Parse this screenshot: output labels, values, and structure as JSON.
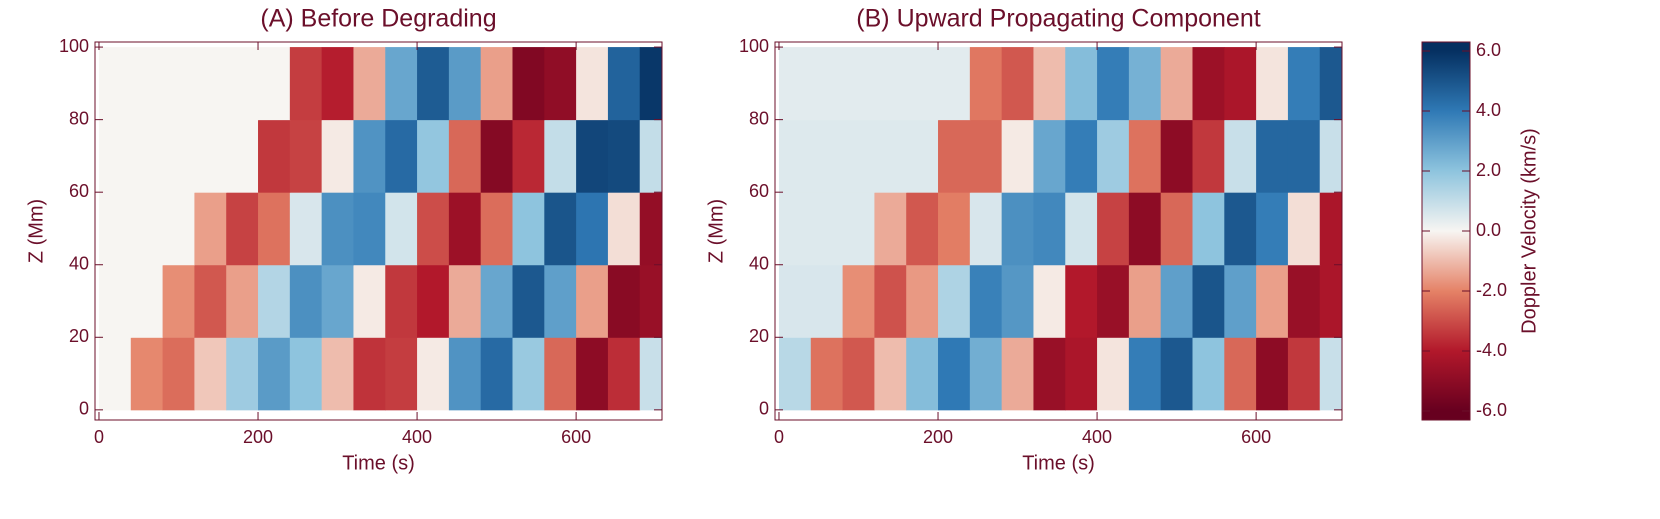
{
  "chart_data": [
    {
      "type": "heatmap",
      "title": "(A) Before Degrading",
      "x_label": "Time (s)",
      "y_label": "Z (Mm)",
      "x": [
        20,
        60,
        100,
        140,
        180,
        220,
        260,
        300,
        340,
        380,
        420,
        460,
        500,
        540,
        580,
        620,
        660,
        700
      ],
      "y": [
        10,
        30,
        50,
        70,
        90
      ],
      "values": [
        [
          0,
          -1.9,
          -2.4,
          -0.8,
          1.7,
          3.1,
          2.0,
          -1.0,
          -3.5,
          -3.3,
          -0.2,
          3.3,
          4.4,
          1.8,
          -2.5,
          -5.0,
          -3.6,
          0.9
        ],
        [
          0,
          0,
          -1.8,
          -2.8,
          -1.5,
          1.3,
          3.4,
          2.8,
          -0.2,
          -3.4,
          -4.0,
          -1.3,
          2.8,
          4.9,
          3.0,
          -1.5,
          -5.1,
          -4.7
        ],
        [
          0,
          0,
          0,
          -1.5,
          -3.2,
          -2.3,
          0.6,
          3.4,
          3.6,
          0.7,
          -3.0,
          -4.6,
          -2.4,
          2.0,
          5.0,
          4.1,
          -0.4,
          -4.8
        ],
        [
          0,
          0,
          0,
          0,
          0,
          -3.4,
          -3.2,
          -0.2,
          3.3,
          4.4,
          1.9,
          -2.5,
          -5.2,
          -3.7,
          1.0,
          5.4,
          5.3,
          1.0
        ],
        [
          0,
          0,
          0,
          0,
          0,
          0,
          -3.3,
          -3.9,
          -1.3,
          2.8,
          4.8,
          3.1,
          -1.5,
          -5.3,
          -4.9,
          -0.3,
          4.6,
          5.8
        ]
      ],
      "xlim": [
        -5,
        708
      ],
      "ylim": [
        -2.8,
        101.4
      ],
      "xticks": [
        0,
        200,
        400,
        600
      ],
      "yticks": [
        0,
        20,
        40,
        60,
        80,
        100
      ]
    },
    {
      "type": "heatmap",
      "title": "(B) Upward Propagating Component",
      "x_label": "Time (s)",
      "y_label": "Z (Mm)",
      "x": [
        20,
        60,
        100,
        140,
        180,
        220,
        260,
        300,
        340,
        380,
        420,
        460,
        500,
        540,
        580,
        620,
        660,
        700
      ],
      "y": [
        10,
        30,
        50,
        70,
        90
      ],
      "values": [
        [
          1.2,
          -2.3,
          -2.8,
          -1.0,
          2.2,
          4.0,
          2.6,
          -1.3,
          -4.7,
          -4.2,
          -0.3,
          3.9,
          4.9,
          2.0,
          -2.5,
          -5.0,
          -3.4,
          0.9
        ],
        [
          0.6,
          0.6,
          -1.8,
          -2.9,
          -1.6,
          1.4,
          3.8,
          3.2,
          -0.2,
          -4.0,
          -4.7,
          -1.5,
          3.0,
          5.0,
          3.0,
          -1.5,
          -4.7,
          -4.2
        ],
        [
          0.5,
          0.5,
          0.5,
          -1.3,
          -2.8,
          -2.1,
          0.6,
          3.4,
          3.6,
          0.7,
          -3.2,
          -5.0,
          -2.5,
          2.0,
          4.9,
          3.9,
          -0.4,
          -4.2
        ],
        [
          0.5,
          0.5,
          0.5,
          0.5,
          0.5,
          -2.5,
          -2.5,
          -0.2,
          2.8,
          3.9,
          1.7,
          -2.3,
          -5.0,
          -3.4,
          0.9,
          4.5,
          4.5,
          0.9
        ],
        [
          0.4,
          0.4,
          0.4,
          0.4,
          0.4,
          0.4,
          -2.2,
          -2.8,
          -1.0,
          2.2,
          3.9,
          2.5,
          -1.3,
          -4.6,
          -4.2,
          -0.3,
          3.9,
          4.9
        ]
      ],
      "xlim": [
        -5,
        708
      ],
      "ylim": [
        -2.8,
        101.4
      ],
      "xticks": [
        0,
        200,
        400,
        600
      ],
      "yticks": [
        0,
        20,
        40,
        60,
        80,
        100
      ]
    }
  ],
  "colorbar": {
    "label": "Doppler Velocity (km/s)",
    "zlim": [
      -6.3,
      6.3
    ],
    "ticks": [
      {
        "value": -6,
        "label": "-6.0"
      },
      {
        "value": -4,
        "label": "-4.0"
      },
      {
        "value": -2,
        "label": "-2.0"
      },
      {
        "value": 0,
        "label": "0.0"
      },
      {
        "value": 2,
        "label": "2.0"
      },
      {
        "value": 4,
        "label": "4.0"
      },
      {
        "value": 6,
        "label": "6.0"
      }
    ],
    "colorscale": [
      [
        -6,
        "#67001f"
      ],
      [
        -4,
        "#b2182b"
      ],
      [
        -2,
        "#e58267"
      ],
      [
        0,
        "#f7f5f2"
      ],
      [
        2,
        "#8ec4de"
      ],
      [
        4,
        "#2f79b5"
      ],
      [
        6,
        "#053061"
      ]
    ]
  }
}
